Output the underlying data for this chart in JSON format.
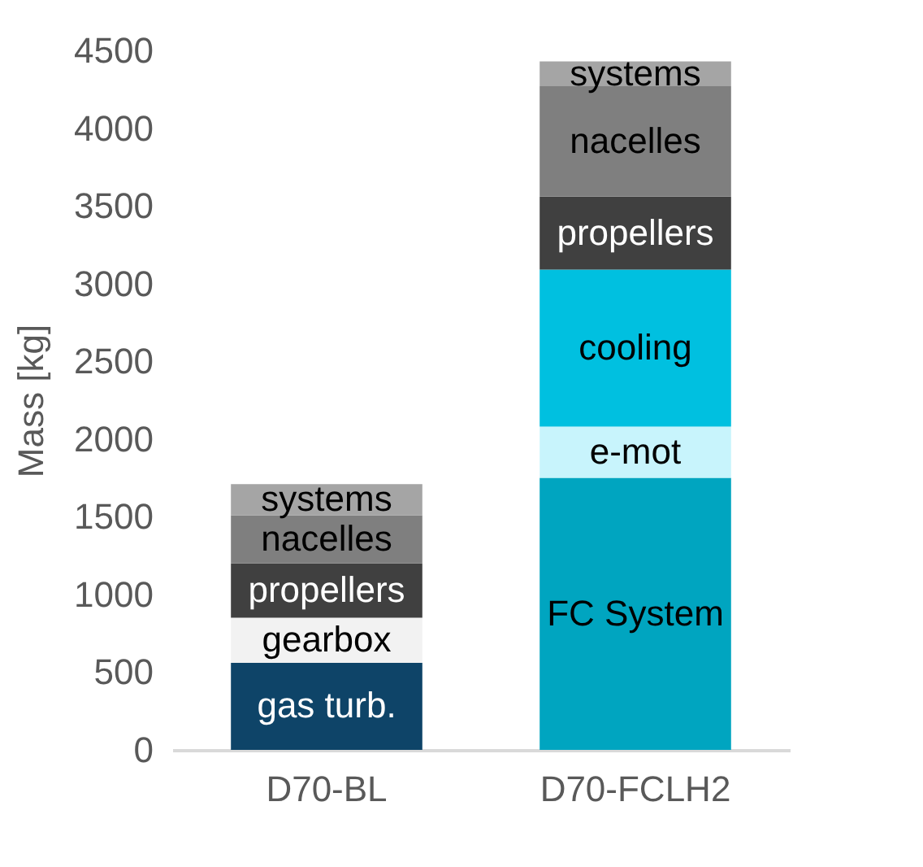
{
  "chart_data": {
    "type": "bar",
    "stacked": true,
    "ylabel": "Mass [kg]",
    "categories": [
      "D70-BL",
      "D70-FCLH2"
    ],
    "ylim": [
      0,
      4500
    ],
    "yticks": [
      0,
      500,
      1000,
      1500,
      2000,
      2500,
      3000,
      3500,
      4000,
      4500
    ],
    "grid": false,
    "legend": false,
    "series": [
      {
        "name": "gas turb.",
        "color": "#0e4468",
        "values": [
          560,
          null
        ]
      },
      {
        "name": "FC System",
        "color": "#00a5c0",
        "values": [
          null,
          1750
        ]
      },
      {
        "name": "gearbox",
        "color": "#f2f2f2",
        "values": [
          290,
          null
        ]
      },
      {
        "name": "e-mot",
        "color": "#c8f4fc",
        "values": [
          null,
          330
        ]
      },
      {
        "name": "cooling",
        "color": "#00c0e0",
        "values": [
          null,
          1010
        ]
      },
      {
        "name": "propellers",
        "color": "#404040",
        "values": [
          350,
          470
        ]
      },
      {
        "name": "nacelles",
        "color": "#7f7f7f",
        "values": [
          310,
          710
        ]
      },
      {
        "name": "systems",
        "color": "#a5a5a5",
        "values": [
          200,
          160
        ]
      }
    ]
  }
}
